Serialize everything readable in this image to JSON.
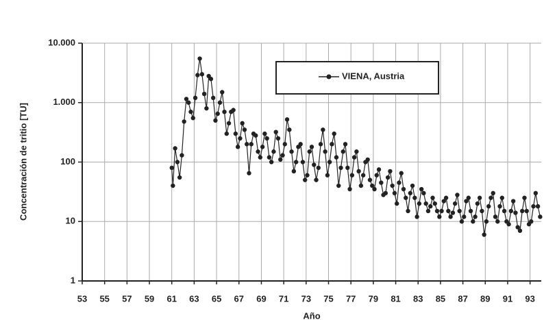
{
  "chart_data": {
    "type": "line",
    "y_label": "Concentración de tritio [TU]",
    "x_label": "Año",
    "yscale": "log",
    "grid": true,
    "legend": "top-right",
    "xlim": [
      53,
      94
    ],
    "xticks": [
      53,
      55,
      57,
      59,
      61,
      63,
      65,
      67,
      69,
      71,
      73,
      75,
      77,
      79,
      81,
      83,
      85,
      87,
      89,
      91,
      93
    ],
    "ylim": [
      1,
      10000
    ],
    "yticks": [
      {
        "value": 10000,
        "label": "10.000"
      },
      {
        "value": 1000,
        "label": "1.000"
      },
      100,
      10,
      1
    ],
    "x": [
      61.0,
      61.1,
      61.3,
      61.5,
      61.7,
      61.9,
      62.1,
      62.3,
      62.5,
      62.7,
      62.9,
      63.1,
      63.3,
      63.5,
      63.7,
      63.9,
      64.1,
      64.3,
      64.5,
      64.7,
      64.9,
      65.1,
      65.3,
      65.5,
      65.7,
      65.9,
      66.1,
      66.3,
      66.5,
      66.7,
      66.9,
      67.1,
      67.3,
      67.5,
      67.7,
      67.9,
      68.1,
      68.3,
      68.5,
      68.7,
      68.9,
      69.1,
      69.3,
      69.5,
      69.7,
      69.9,
      70.1,
      70.3,
      70.5,
      70.7,
      70.9,
      71.1,
      71.3,
      71.5,
      71.7,
      71.9,
      72.1,
      72.3,
      72.5,
      72.7,
      72.9,
      73.1,
      73.3,
      73.5,
      73.7,
      73.9,
      74.1,
      74.3,
      74.5,
      74.7,
      74.9,
      75.1,
      75.3,
      75.5,
      75.7,
      75.9,
      76.1,
      76.3,
      76.5,
      76.7,
      76.9,
      77.1,
      77.3,
      77.5,
      77.7,
      77.9,
      78.1,
      78.3,
      78.5,
      78.7,
      78.9,
      79.1,
      79.3,
      79.5,
      79.7,
      79.9,
      80.1,
      80.3,
      80.5,
      80.7,
      80.9,
      81.1,
      81.3,
      81.5,
      81.7,
      81.9,
      82.1,
      82.3,
      82.5,
      82.7,
      82.9,
      83.1,
      83.3,
      83.5,
      83.7,
      83.9,
      84.1,
      84.3,
      84.5,
      84.7,
      84.9,
      85.1,
      85.3,
      85.5,
      85.7,
      85.9,
      86.1,
      86.3,
      86.5,
      86.7,
      86.9,
      87.1,
      87.3,
      87.5,
      87.7,
      87.9,
      88.1,
      88.3,
      88.5,
      88.7,
      88.9,
      89.1,
      89.3,
      89.5,
      89.7,
      89.9,
      90.1,
      90.3,
      90.5,
      90.7,
      90.9,
      91.1,
      91.3,
      91.5,
      91.7,
      91.9,
      92.1,
      92.3,
      92.5,
      92.7,
      92.9,
      93.1,
      93.3,
      93.5,
      93.7,
      93.9
    ],
    "series": [
      {
        "name": "VIENA, Austria",
        "color": "#222222",
        "values": [
          80,
          40,
          170,
          100,
          55,
          130,
          480,
          1150,
          1000,
          700,
          550,
          1200,
          2900,
          5500,
          3000,
          1400,
          800,
          2800,
          2500,
          1200,
          500,
          650,
          1000,
          1500,
          700,
          300,
          450,
          700,
          750,
          300,
          180,
          250,
          450,
          350,
          200,
          65,
          200,
          300,
          280,
          150,
          120,
          180,
          300,
          250,
          120,
          100,
          150,
          320,
          250,
          110,
          130,
          200,
          520,
          350,
          150,
          70,
          100,
          180,
          200,
          100,
          50,
          60,
          150,
          180,
          90,
          50,
          80,
          200,
          350,
          150,
          60,
          100,
          200,
          300,
          120,
          40,
          80,
          150,
          200,
          80,
          35,
          60,
          120,
          150,
          70,
          40,
          60,
          100,
          110,
          50,
          40,
          35,
          60,
          75,
          45,
          28,
          30,
          55,
          70,
          40,
          30,
          20,
          45,
          65,
          35,
          25,
          15,
          30,
          40,
          25,
          12,
          20,
          35,
          30,
          20,
          15,
          18,
          25,
          20,
          15,
          12,
          15,
          22,
          25,
          15,
          12,
          14,
          20,
          28,
          15,
          10,
          12,
          22,
          25,
          15,
          10,
          12,
          20,
          25,
          15,
          6,
          10,
          18,
          25,
          30,
          12,
          10,
          18,
          25,
          15,
          10,
          9,
          15,
          22,
          14,
          8,
          7,
          15,
          25,
          15,
          9,
          10,
          18,
          30,
          18,
          12
        ]
      }
    ]
  }
}
